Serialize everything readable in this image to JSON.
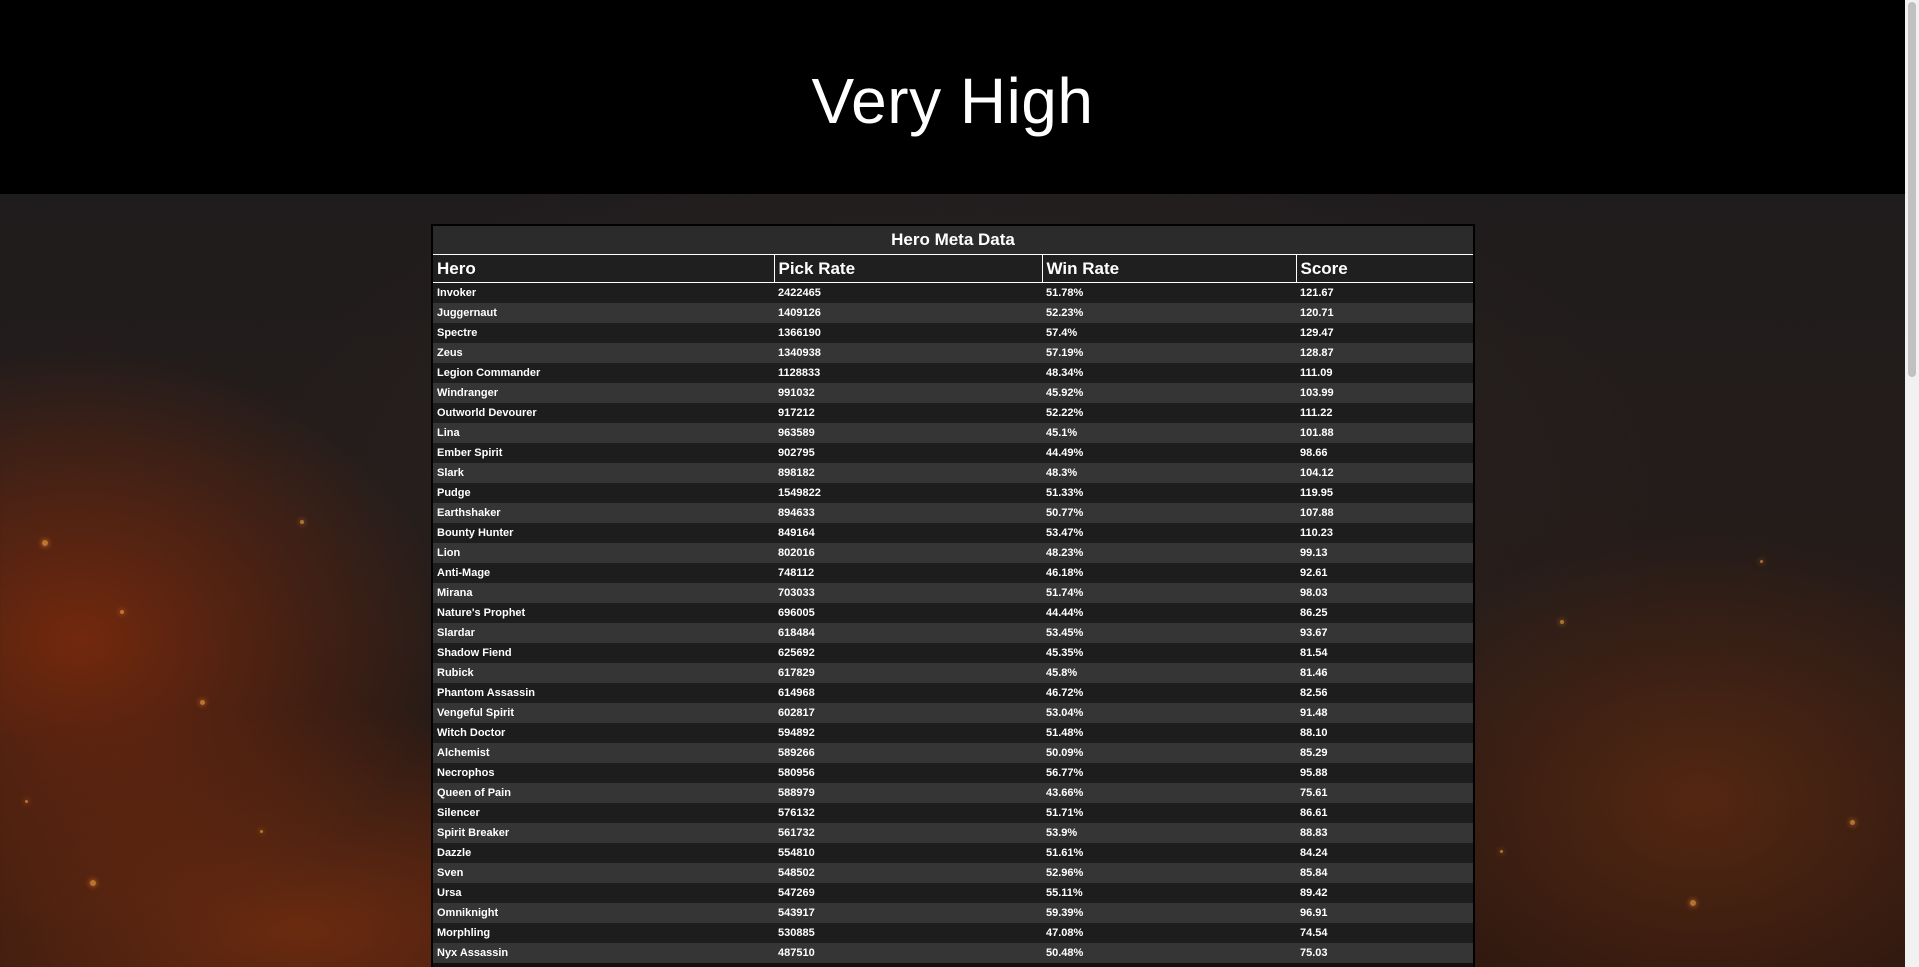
{
  "page": {
    "title": "Very High"
  },
  "table": {
    "caption": "Hero Meta Data",
    "columns": [
      "Hero",
      "Pick Rate",
      "Win Rate",
      "Score"
    ],
    "rows": [
      [
        "Invoker",
        "2422465",
        "51.78%",
        "121.67"
      ],
      [
        "Juggernaut",
        "1409126",
        "52.23%",
        "120.71"
      ],
      [
        "Spectre",
        "1366190",
        "57.4%",
        "129.47"
      ],
      [
        "Zeus",
        "1340938",
        "57.19%",
        "128.87"
      ],
      [
        "Legion Commander",
        "1128833",
        "48.34%",
        "111.09"
      ],
      [
        "Windranger",
        "991032",
        "45.92%",
        "103.99"
      ],
      [
        "Outworld Devourer",
        "917212",
        "52.22%",
        "111.22"
      ],
      [
        "Lina",
        "963589",
        "45.1%",
        "101.88"
      ],
      [
        "Ember Spirit",
        "902795",
        "44.49%",
        "98.66"
      ],
      [
        "Slark",
        "898182",
        "48.3%",
        "104.12"
      ],
      [
        "Pudge",
        "1549822",
        "51.33%",
        "119.95"
      ],
      [
        "Earthshaker",
        "894633",
        "50.77%",
        "107.88"
      ],
      [
        "Bounty Hunter",
        "849164",
        "53.47%",
        "110.23"
      ],
      [
        "Lion",
        "802016",
        "48.23%",
        "99.13"
      ],
      [
        "Anti-Mage",
        "748112",
        "46.18%",
        "92.61"
      ],
      [
        "Mirana",
        "703033",
        "51.74%",
        "98.03"
      ],
      [
        "Nature's Prophet",
        "696005",
        "44.44%",
        "86.25"
      ],
      [
        "Slardar",
        "618484",
        "53.45%",
        "93.67"
      ],
      [
        "Shadow Fiend",
        "625692",
        "45.35%",
        "81.54"
      ],
      [
        "Rubick",
        "617829",
        "45.8%",
        "81.46"
      ],
      [
        "Phantom Assassin",
        "614968",
        "46.72%",
        "82.56"
      ],
      [
        "Vengeful Spirit",
        "602817",
        "53.04%",
        "91.48"
      ],
      [
        "Witch Doctor",
        "594892",
        "51.48%",
        "88.10"
      ],
      [
        "Alchemist",
        "589266",
        "50.09%",
        "85.29"
      ],
      [
        "Necrophos",
        "580956",
        "56.77%",
        "95.88"
      ],
      [
        "Queen of Pain",
        "588979",
        "43.66%",
        "75.61"
      ],
      [
        "Silencer",
        "576132",
        "51.71%",
        "86.61"
      ],
      [
        "Spirit Breaker",
        "561732",
        "53.9%",
        "88.83"
      ],
      [
        "Dazzle",
        "554810",
        "51.61%",
        "84.24"
      ],
      [
        "Sven",
        "548502",
        "52.96%",
        "85.84"
      ],
      [
        "Ursa",
        "547269",
        "55.11%",
        "89.42"
      ],
      [
        "Omniknight",
        "543917",
        "59.39%",
        "96.91"
      ],
      [
        "Morphling",
        "530885",
        "47.08%",
        "74.54"
      ],
      [
        "Nyx Assassin",
        "487510",
        "50.48%",
        "75.03"
      ]
    ]
  }
}
